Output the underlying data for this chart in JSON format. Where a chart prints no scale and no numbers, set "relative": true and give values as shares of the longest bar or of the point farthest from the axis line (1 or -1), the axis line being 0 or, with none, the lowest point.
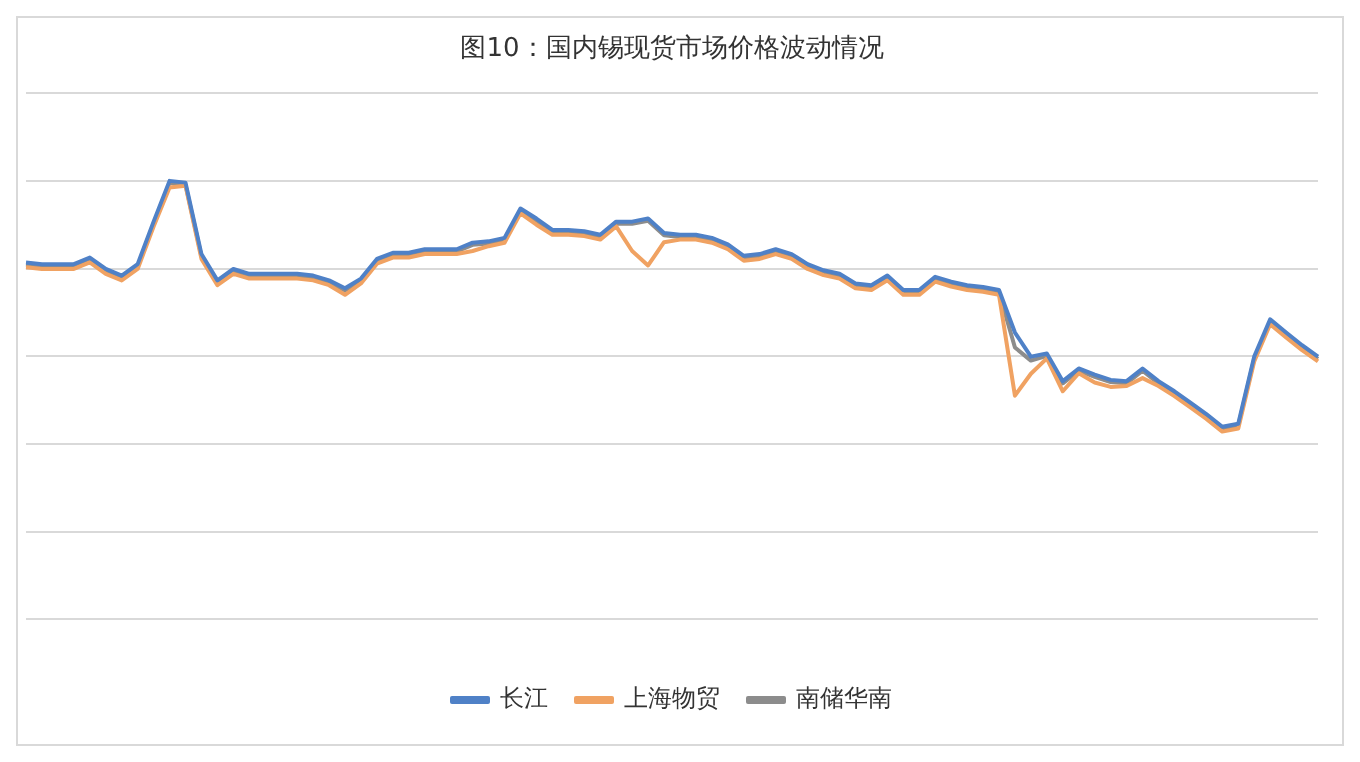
{
  "chart_data": {
    "type": "line",
    "title": "图10：国内锡现货市场价格波动情况",
    "relative": true,
    "grid": "y",
    "legend": "bottom",
    "marker": "none",
    "line_style": "solid",
    "categories": [
      null,
      null,
      null,
      null,
      null,
      null,
      null,
      null,
      null,
      null,
      null,
      null,
      null,
      null,
      null,
      null,
      null,
      null,
      null,
      null,
      null,
      null,
      null,
      null,
      null,
      null,
      null,
      null,
      null,
      null,
      null,
      null,
      null,
      null,
      null,
      null,
      null,
      null,
      null,
      null,
      null,
      null,
      null,
      null,
      null,
      null,
      null,
      null,
      null,
      null,
      null,
      null,
      null,
      null,
      null,
      null,
      null,
      null,
      null,
      null,
      null,
      null,
      null,
      null,
      null,
      null,
      null,
      null,
      null,
      null,
      null,
      null,
      null,
      null,
      null,
      null,
      null,
      null,
      null,
      null,
      null,
      null
    ],
    "series": [
      {
        "name": "长江",
        "color": "#4f81c7",
        "values": [
          0.814,
          0.81,
          0.81,
          0.81,
          0.825,
          0.799,
          0.784,
          0.81,
          0.907,
          1.0,
          0.996,
          0.833,
          0.773,
          0.799,
          0.788,
          0.788,
          0.788,
          0.788,
          0.784,
          0.773,
          0.755,
          0.777,
          0.822,
          0.836,
          0.836,
          0.844,
          0.844,
          0.844,
          0.859,
          0.862,
          0.87,
          0.937,
          0.914,
          0.888,
          0.888,
          0.885,
          0.877,
          0.907,
          0.907,
          0.914,
          0.881,
          0.877,
          0.877,
          0.87,
          0.855,
          0.829,
          0.833,
          0.844,
          0.833,
          0.81,
          0.796,
          0.788,
          0.766,
          0.762,
          0.784,
          0.751,
          0.751,
          0.781,
          0.77,
          0.762,
          0.758,
          0.751,
          0.654,
          0.599,
          0.606,
          0.543,
          0.572,
          0.558,
          0.546,
          0.543,
          0.572,
          0.543,
          0.52,
          0.494,
          0.468,
          0.439,
          0.446,
          0.599,
          0.684,
          0.654,
          0.625,
          0.599
        ]
      },
      {
        "name": "上海物贸",
        "color": "#f0a262",
        "values": [
          0.803,
          0.799,
          0.799,
          0.799,
          0.814,
          0.788,
          0.773,
          0.799,
          0.896,
          0.985,
          0.989,
          0.822,
          0.762,
          0.788,
          0.777,
          0.777,
          0.777,
          0.777,
          0.773,
          0.762,
          0.74,
          0.766,
          0.811,
          0.825,
          0.825,
          0.833,
          0.833,
          0.833,
          0.84,
          0.851,
          0.859,
          0.926,
          0.9,
          0.877,
          0.877,
          0.874,
          0.866,
          0.896,
          0.84,
          0.807,
          0.86,
          0.866,
          0.866,
          0.859,
          0.844,
          0.818,
          0.822,
          0.833,
          0.822,
          0.799,
          0.785,
          0.777,
          0.755,
          0.751,
          0.773,
          0.74,
          0.74,
          0.77,
          0.759,
          0.751,
          0.747,
          0.74,
          0.51,
          0.56,
          0.595,
          0.52,
          0.561,
          0.54,
          0.53,
          0.532,
          0.55,
          0.532,
          0.509,
          0.483,
          0.457,
          0.428,
          0.435,
          0.588,
          0.673,
          0.643,
          0.614,
          0.588
        ]
      },
      {
        "name": "南储华南",
        "color": "#8c8c8c",
        "values": [
          0.809,
          0.805,
          0.805,
          0.805,
          0.82,
          0.794,
          0.779,
          0.805,
          0.902,
          0.995,
          0.991,
          0.828,
          0.768,
          0.794,
          0.783,
          0.783,
          0.783,
          0.783,
          0.779,
          0.768,
          0.75,
          0.772,
          0.817,
          0.831,
          0.831,
          0.839,
          0.839,
          0.839,
          0.854,
          0.857,
          0.865,
          0.932,
          0.909,
          0.883,
          0.883,
          0.88,
          0.872,
          0.902,
          0.902,
          0.909,
          0.876,
          0.872,
          0.872,
          0.865,
          0.85,
          0.824,
          0.828,
          0.839,
          0.828,
          0.805,
          0.791,
          0.783,
          0.761,
          0.757,
          0.779,
          0.746,
          0.746,
          0.776,
          0.765,
          0.757,
          0.753,
          0.746,
          0.62,
          0.59,
          0.601,
          0.538,
          0.567,
          0.553,
          0.541,
          0.538,
          0.567,
          0.538,
          0.515,
          0.489,
          0.463,
          0.434,
          0.441,
          0.594,
          0.679,
          0.649,
          0.62,
          0.594
        ]
      }
    ]
  }
}
